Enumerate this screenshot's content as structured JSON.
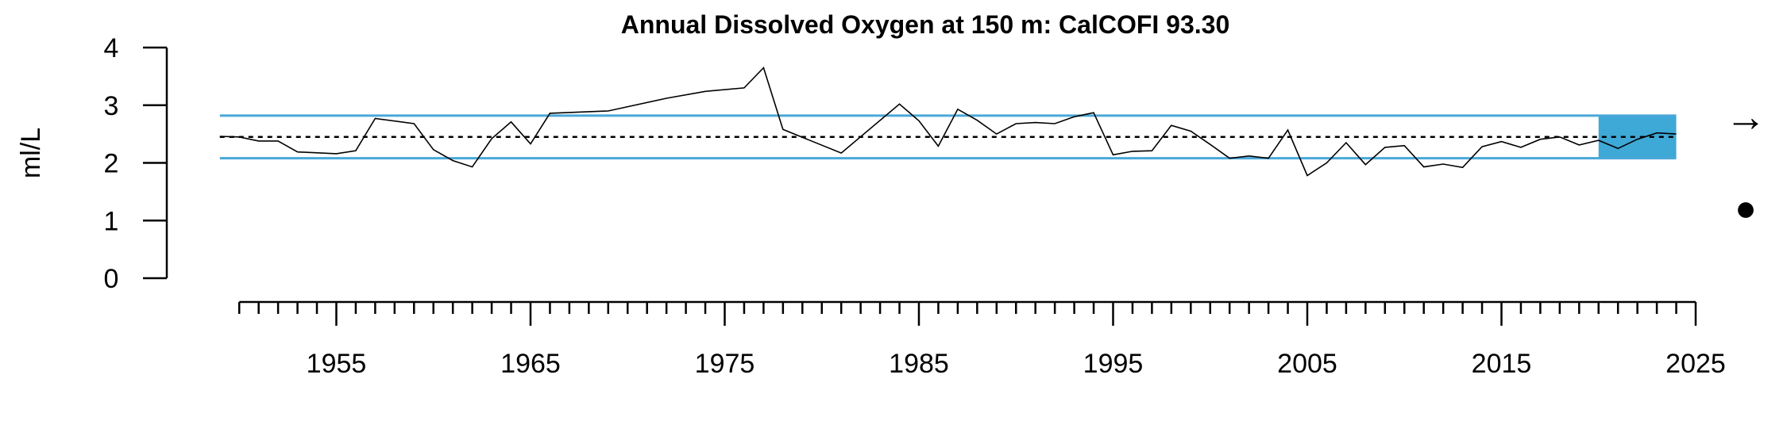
{
  "chart_data": {
    "type": "line",
    "title": "Annual Dissolved Oxygen at 150 m: CalCOFI 93.30",
    "ylabel": "ml/L",
    "xlabel": "",
    "xlim": [
      1949.5,
      2025
    ],
    "ylim": [
      0,
      4
    ],
    "y_ticks": [
      "0",
      "1",
      "2",
      "3",
      "4"
    ],
    "x_tick_labels": [
      "1955",
      "1965",
      "1975",
      "1985",
      "1995",
      "2005",
      "2015",
      "2025"
    ],
    "mean": 2.45,
    "sd_upper": 2.82,
    "sd_lower": 2.08,
    "recent_period": [
      2020,
      2024
    ],
    "trend_symbol": "→",
    "mean_symbol": "●",
    "colors": {
      "series": "#000000",
      "sd_band": "#4aa8d8",
      "recent_fill": "#3ea8d6"
    },
    "series": [
      {
        "x": [
          1949,
          1950,
          1951,
          1952,
          1953,
          1955,
          1956,
          1957,
          1959,
          1960,
          1961,
          1962,
          1963,
          1964,
          1965,
          1966,
          1969,
          1972,
          1974,
          1976,
          1977,
          1978,
          1981,
          1984,
          1985,
          1986,
          1987,
          1988,
          1989,
          1990,
          1991,
          1992,
          1993,
          1994,
          1995,
          1996,
          1997,
          1998,
          1999,
          2000,
          2001,
          2002,
          2003,
          2004,
          2005,
          2006,
          2007,
          2008,
          2009,
          2010,
          2011,
          2012,
          2013,
          2014,
          2015,
          2016,
          2017,
          2018,
          2019,
          2020,
          2021,
          2022,
          2023,
          2024
        ],
        "y": [
          2.46,
          2.45,
          2.38,
          2.38,
          2.19,
          2.16,
          2.21,
          2.77,
          2.68,
          2.23,
          2.04,
          1.93,
          2.42,
          2.71,
          2.33,
          2.86,
          2.9,
          3.12,
          3.24,
          3.3,
          3.65,
          2.58,
          2.17,
          3.02,
          2.73,
          2.29,
          2.93,
          2.74,
          2.5,
          2.68,
          2.7,
          2.68,
          2.8,
          2.87,
          2.14,
          2.2,
          2.21,
          2.65,
          2.55,
          2.32,
          2.08,
          2.12,
          2.08,
          2.57,
          1.78,
          2.0,
          2.35,
          1.97,
          2.27,
          2.3,
          1.93,
          1.98,
          1.92,
          2.28,
          2.37,
          2.27,
          2.41,
          2.45,
          2.31,
          2.39,
          2.25,
          2.41,
          2.52,
          2.5
        ]
      }
    ]
  }
}
